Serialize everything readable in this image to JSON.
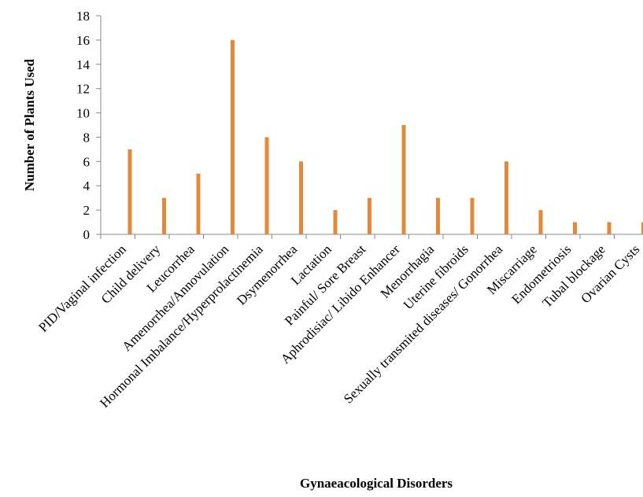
{
  "chart_data": {
    "type": "bar",
    "xlabel": "Gynaeacological Disorders",
    "ylabel": "Number of Plants  Used",
    "ylim": [
      0,
      18
    ],
    "yticks": [
      0,
      2,
      4,
      6,
      8,
      10,
      12,
      14,
      16,
      18
    ],
    "grid": false,
    "bar_color": "#E2893B",
    "categories": [
      "PID/Vaginal infection",
      "Child delivery",
      "Leucorrhea",
      "Amenorrhea/Annovulation",
      "Hormonal Imbalance/Hyperprolactinemia",
      "Dsymenorrhea",
      "Lactation",
      "Painful/ Sore Breast",
      "Aphrodisiac/ Libido Enhancer",
      "Menorrhagia",
      "Uterine fibroids",
      "Sexually transmited diseases/ Gonorrhea",
      "Miscarriage",
      "Endometriosis",
      "Tubal blockage",
      "Ovarian Cysts"
    ],
    "values": [
      7,
      3,
      5,
      16,
      8,
      6,
      2,
      3,
      9,
      3,
      3,
      6,
      2,
      1,
      1,
      1
    ]
  }
}
